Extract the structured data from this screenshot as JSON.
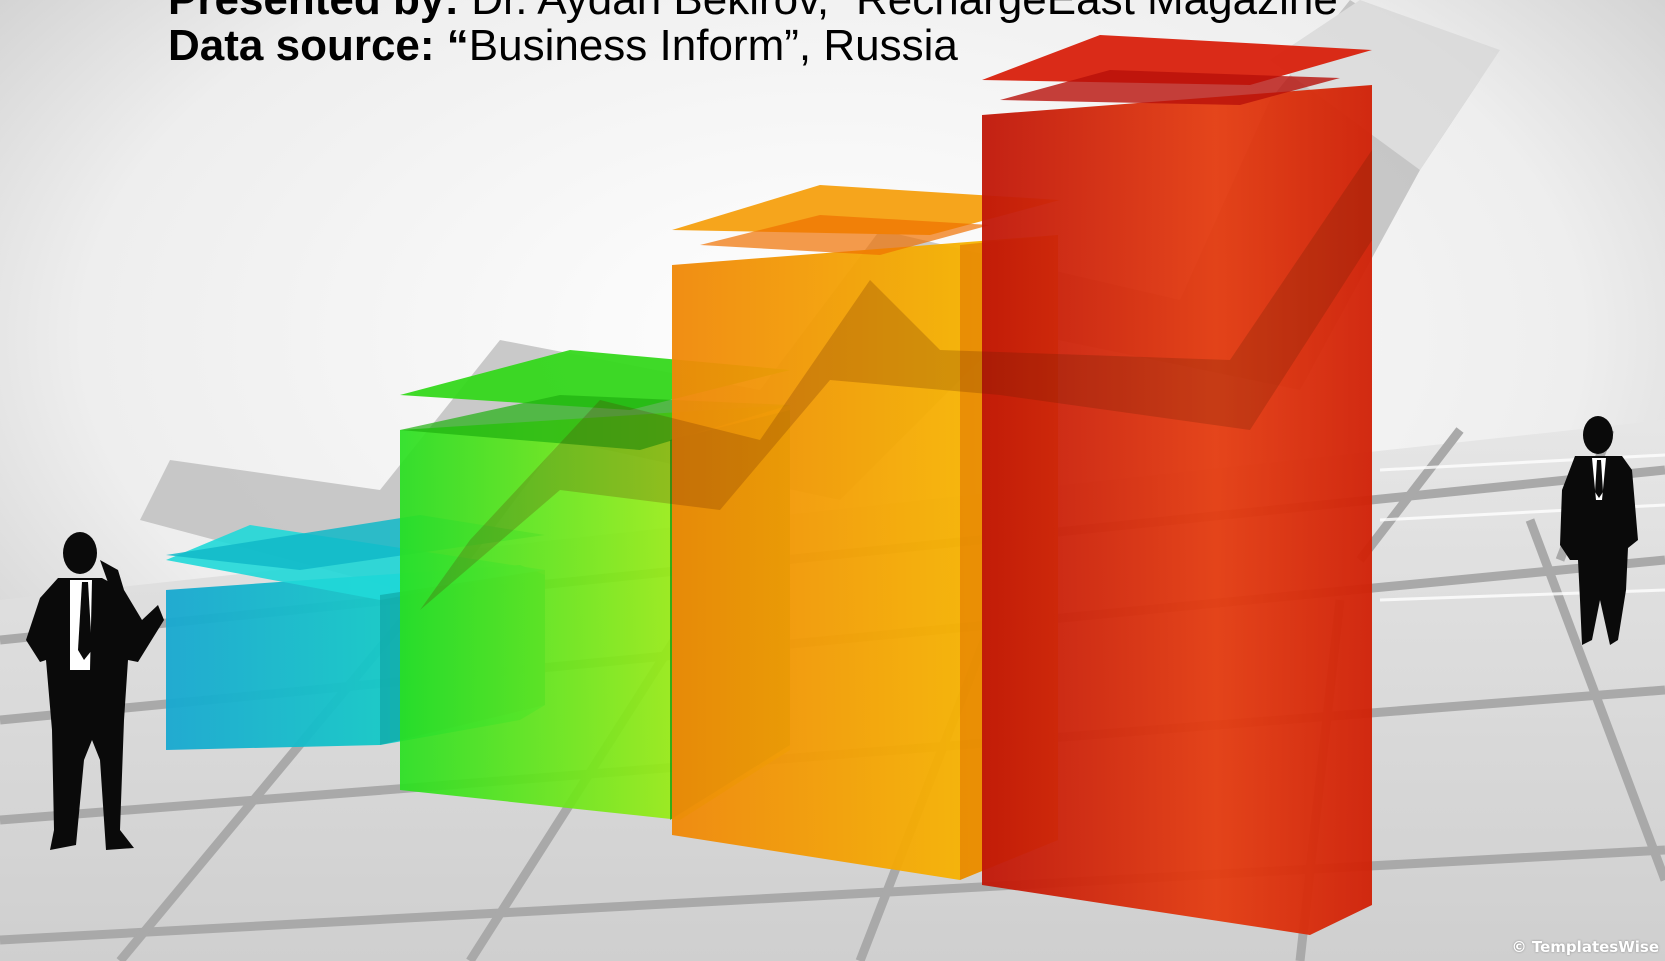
{
  "header": {
    "presenter_label": "Presented by:",
    "presenter_value": " Dr. Aydan Bekirov, “RechargeEast Magazine",
    "source_label": "Data source: “",
    "source_value": "Business Inform”, Russia"
  },
  "watermark": "© TemplatesWise",
  "colors": {
    "bar_cyan": "#12c8d0",
    "bar_green": "#2fe01c",
    "bar_orange": "#f49a08",
    "bar_red": "#d42a0e",
    "arrow": "#c8c8c8",
    "silhouette": "#0a0a0a"
  },
  "icons": {
    "left_figure": "businessman-phone-icon",
    "right_figure": "businessman-walking-icon",
    "trend": "trend-arrow-icon"
  }
}
